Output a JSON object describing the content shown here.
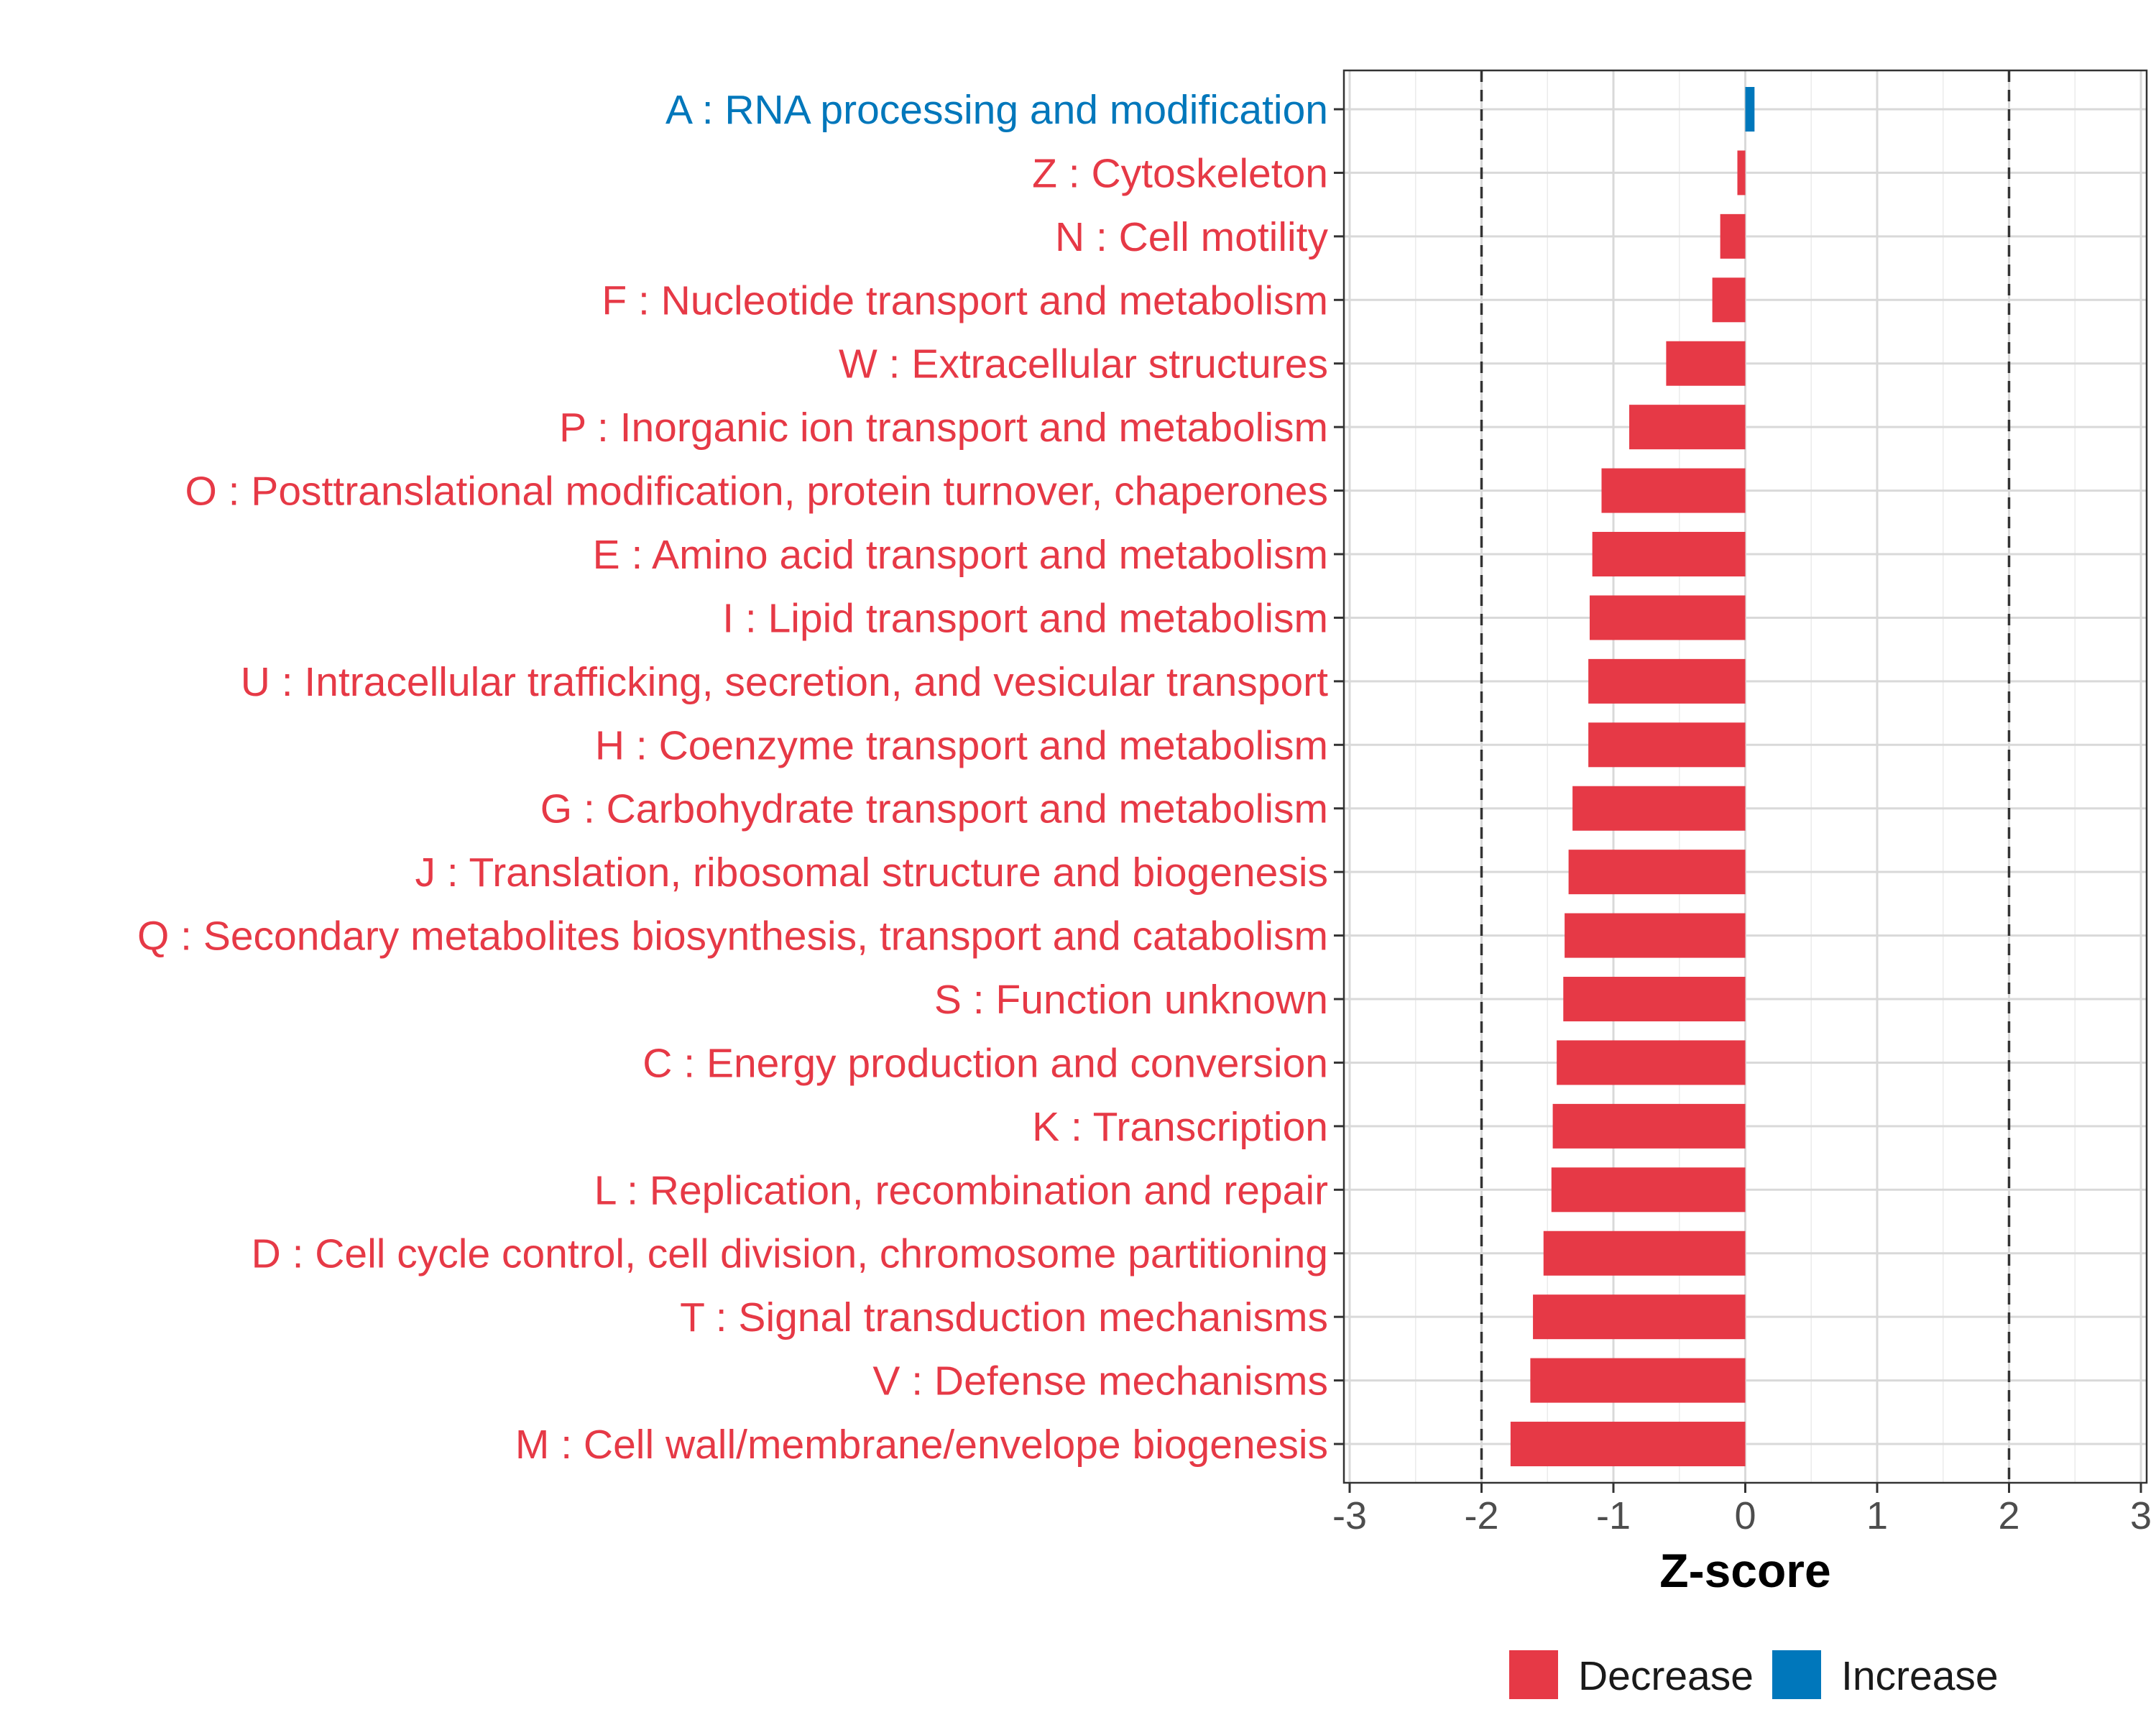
{
  "chart_data": {
    "type": "bar",
    "orientation": "horizontal",
    "title": "",
    "xlabel": "Z-score",
    "ylabel": "",
    "xlim": [
      -3,
      3
    ],
    "xticks": [
      "-3",
      "-2",
      "-1",
      "0",
      "1",
      "2",
      "3"
    ],
    "reference_lines": [
      -2,
      2
    ],
    "grid": true,
    "categories": [
      "A : RNA processing and modification",
      "Z : Cytoskeleton",
      "N : Cell motility",
      "F : Nucleotide transport and metabolism",
      "W : Extracellular structures",
      "P : Inorganic ion transport and metabolism",
      "O : Posttranslational modification, protein turnover, chaperones",
      "E : Amino acid transport and metabolism",
      "I : Lipid transport and metabolism",
      "U : Intracellular trafficking, secretion, and vesicular transport",
      "H : Coenzyme transport and metabolism",
      "G : Carbohydrate transport and metabolism",
      "J : Translation, ribosomal structure and biogenesis",
      "Q : Secondary metabolites biosynthesis, transport and catabolism",
      "S : Function unknown",
      "C : Energy production and conversion",
      "K : Transcription",
      "L : Replication, recombination and repair",
      "D : Cell cycle control, cell division, chromosome partitioning",
      "T : Signal transduction mechanisms",
      "V : Defense mechanisms",
      "M : Cell wall/membrane/envelope biogenesis"
    ],
    "values": [
      0.07,
      -0.06,
      -0.19,
      -0.25,
      -0.6,
      -0.88,
      -1.09,
      -1.16,
      -1.18,
      -1.19,
      -1.19,
      -1.31,
      -1.34,
      -1.37,
      -1.38,
      -1.43,
      -1.46,
      -1.47,
      -1.53,
      -1.61,
      -1.63,
      -1.78
    ],
    "legend": {
      "position": "bottom",
      "entries": [
        {
          "name": "Decrease",
          "color": "#E63946"
        },
        {
          "name": "Increase",
          "color": "#0077BB"
        }
      ]
    }
  }
}
